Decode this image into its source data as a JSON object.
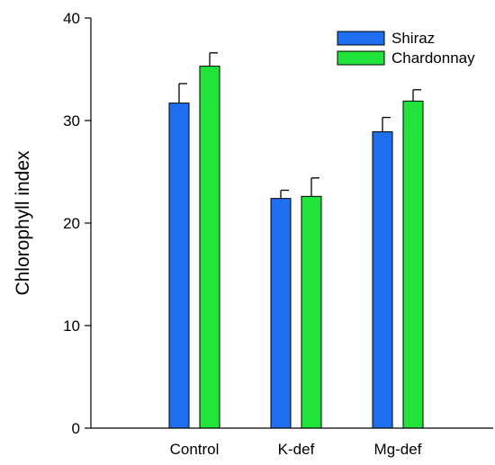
{
  "chart_data": {
    "type": "bar",
    "title": "",
    "xlabel": "",
    "ylabel": "Chlorophyll index",
    "ylim": [
      0,
      40
    ],
    "yticks": [
      0,
      10,
      20,
      30,
      40
    ],
    "categories": [
      "Control",
      "K-def",
      "Mg-def"
    ],
    "grid": false,
    "legend_position": "top-right",
    "series": [
      {
        "name": "Shiraz",
        "color": "#1f6ef0",
        "values": [
          31.7,
          22.4,
          28.9
        ],
        "errors": [
          1.9,
          0.8,
          1.4
        ]
      },
      {
        "name": "Chardonnay",
        "color": "#22e33a",
        "values": [
          35.3,
          22.6,
          31.9
        ],
        "errors": [
          1.3,
          1.8,
          1.1
        ]
      }
    ]
  }
}
